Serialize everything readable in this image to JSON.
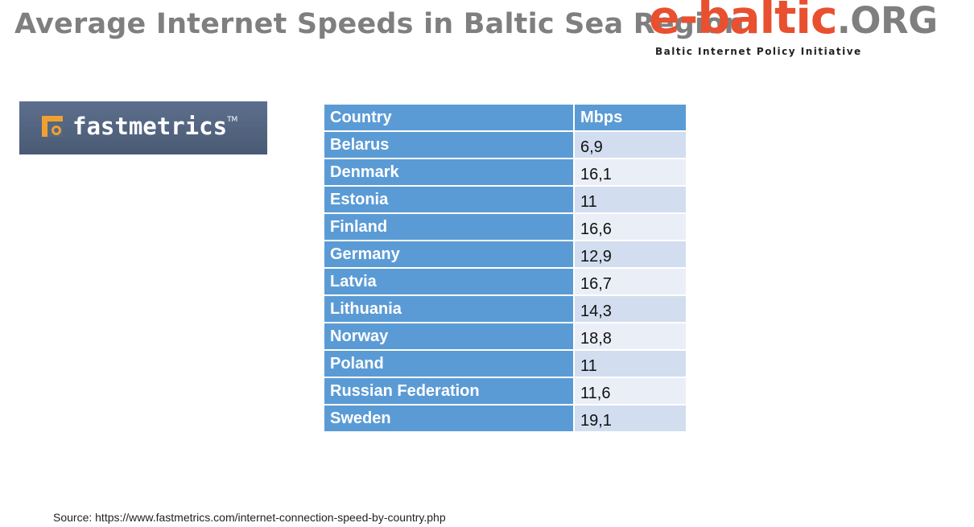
{
  "title": "Average Internet Speeds in Baltic Sea Region",
  "brand": {
    "name": "e-baltic",
    "tld": ".ORG",
    "tagline": "Baltic Internet Policy Initiative",
    "color_primary": "#e8502f",
    "color_secondary": "#7f7f7f"
  },
  "fastmetrics_logo": {
    "name": "fastmetrics",
    "tm": "TM",
    "icon": "fastmetrics-mark-icon",
    "accent": "#f0a030"
  },
  "chart_data": {
    "type": "table",
    "columns": [
      "Country",
      "Mbps"
    ],
    "rows": [
      {
        "country": "Belarus",
        "mbps": "6,9"
      },
      {
        "country": "Denmark",
        "mbps": "16,1"
      },
      {
        "country": "Estonia",
        "mbps": "11"
      },
      {
        "country": "Finland",
        "mbps": "16,6"
      },
      {
        "country": "Germany",
        "mbps": "12,9"
      },
      {
        "country": "Latvia",
        "mbps": "16,7"
      },
      {
        "country": "Lithuania",
        "mbps": "14,3"
      },
      {
        "country": "Norway",
        "mbps": "18,8"
      },
      {
        "country": "Poland",
        "mbps": "11"
      },
      {
        "country": "Russian Federation",
        "mbps": "11,6"
      },
      {
        "country": "Sweden",
        "mbps": "19,1"
      }
    ],
    "header_color": "#5b9bd5"
  },
  "source": "Source: https://www.fastmetrics.com/internet-connection-speed-by-country.php"
}
